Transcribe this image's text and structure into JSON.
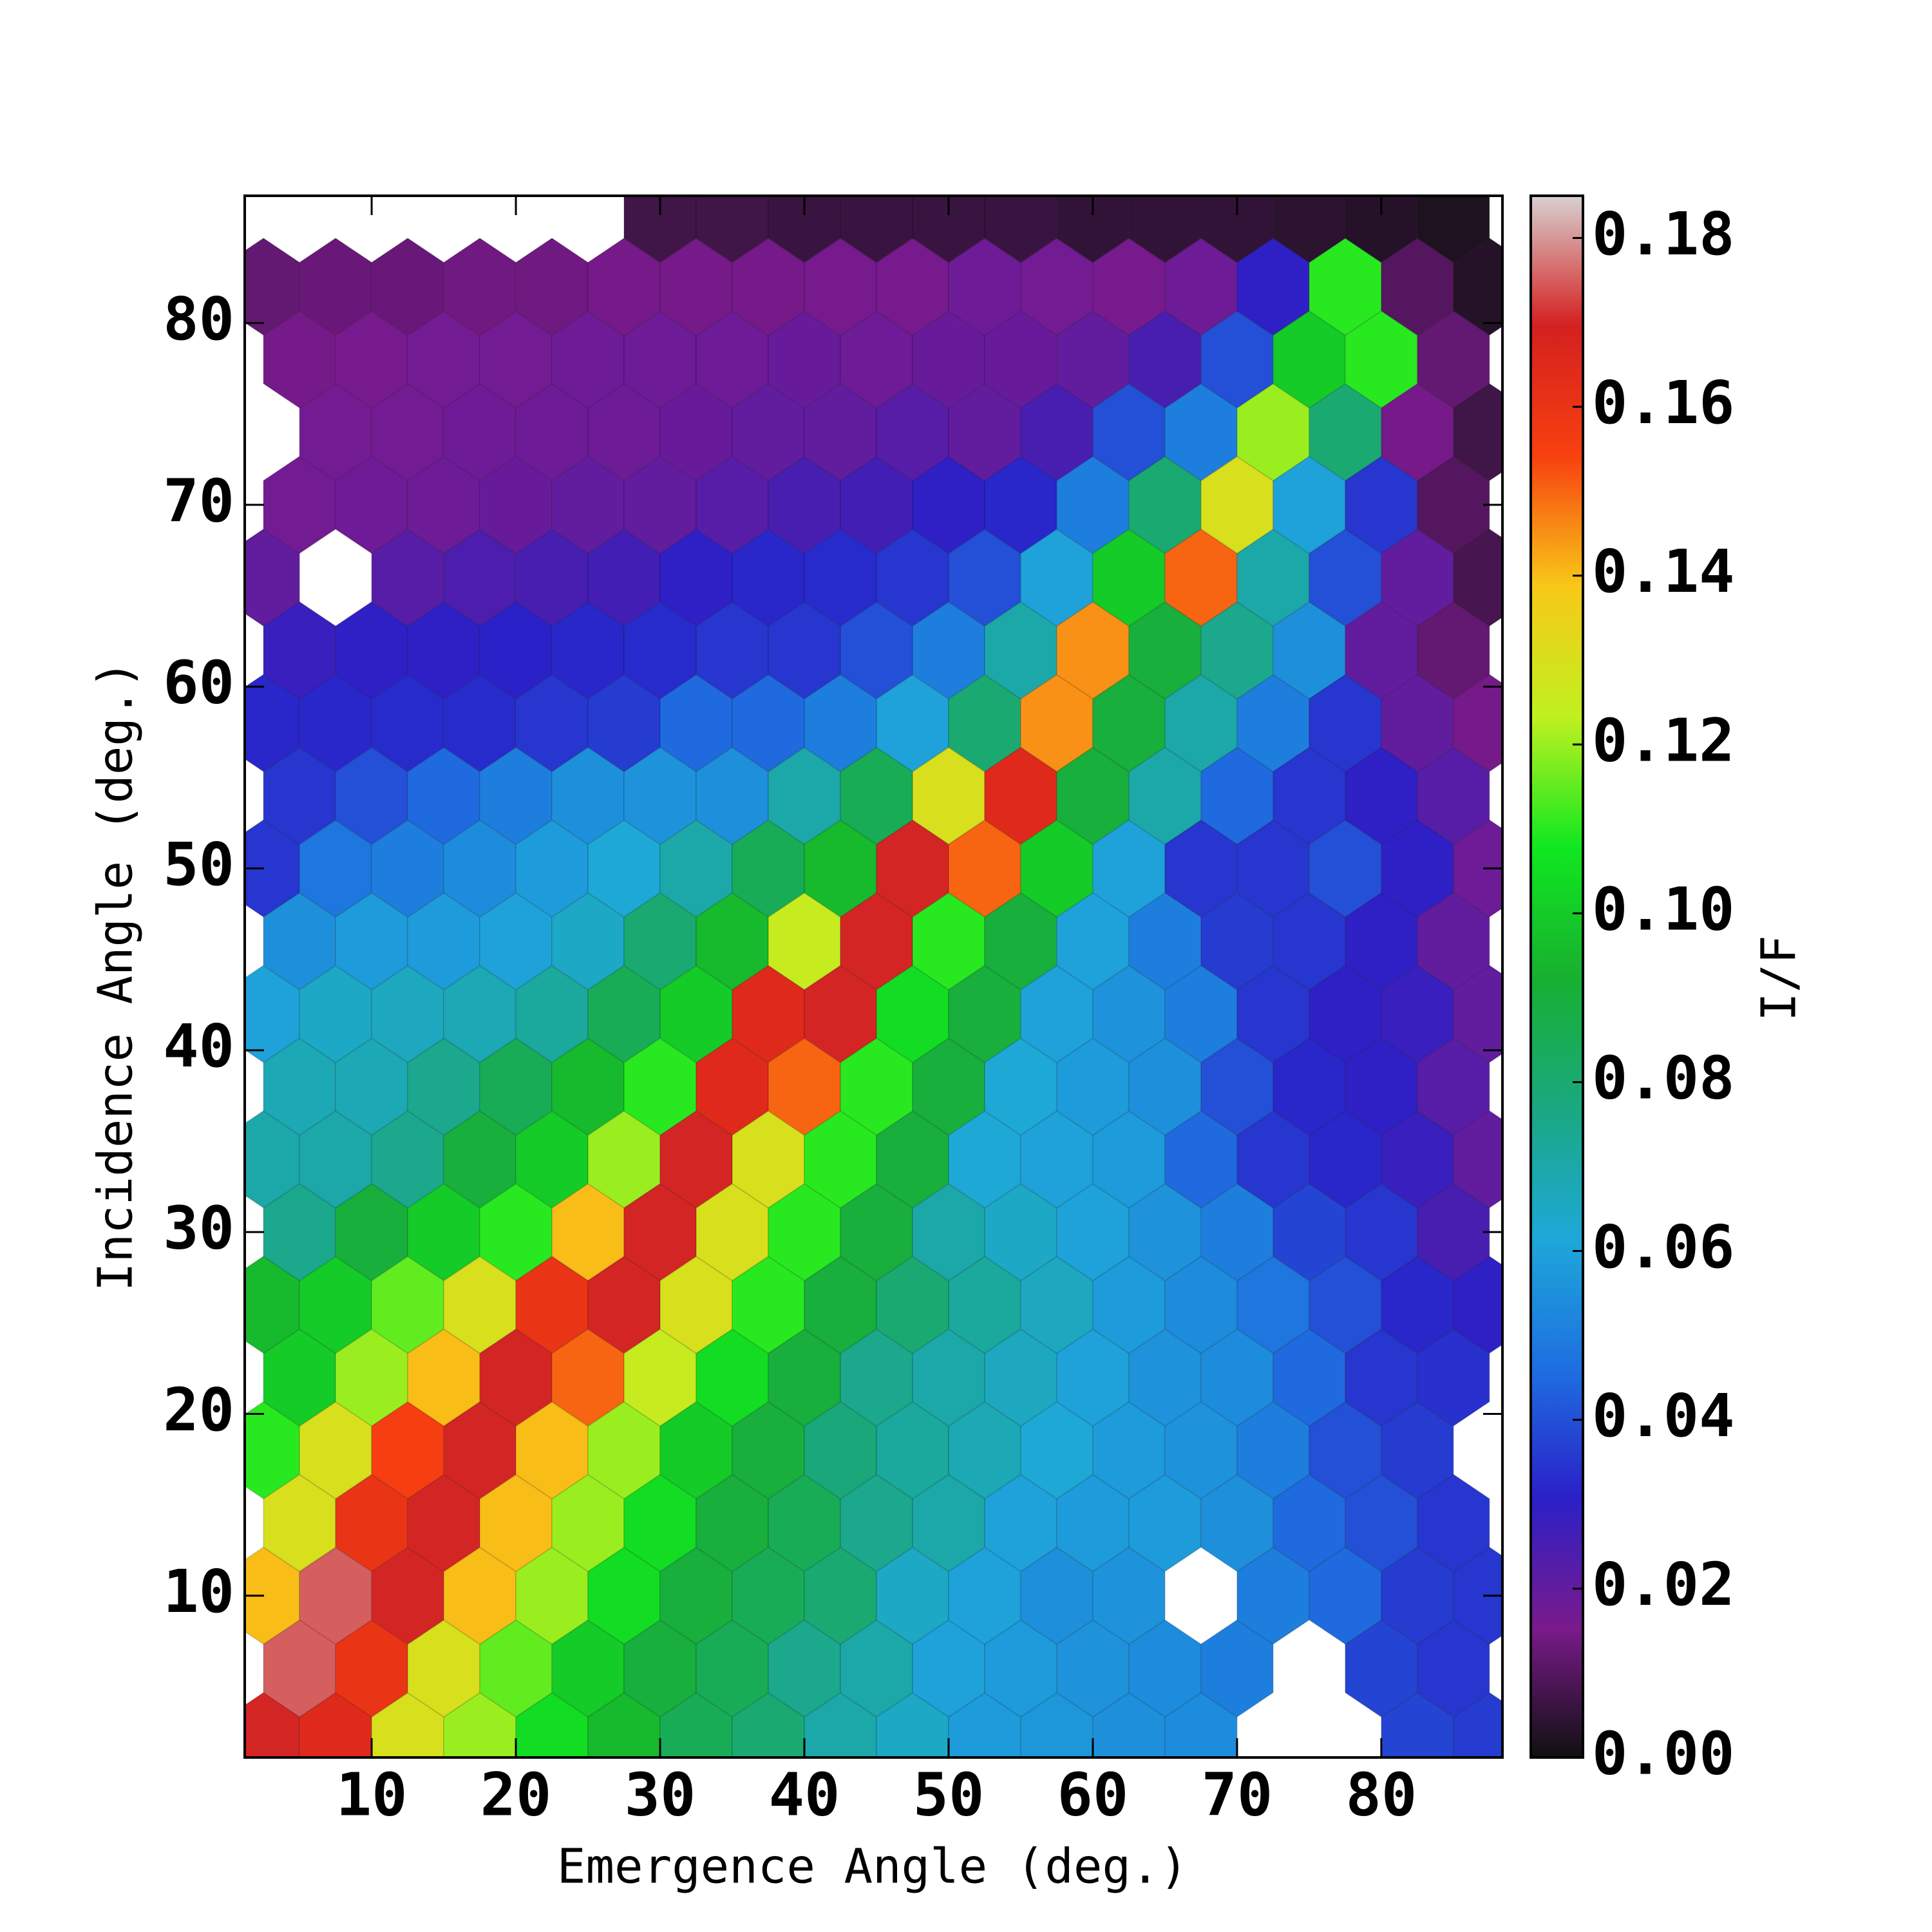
{
  "chart_data": {
    "type": "hexbin",
    "xlabel": "Emergence Angle (deg.)",
    "ylabel": "Incidence Angle (deg.)",
    "colorbar_label": "I/F",
    "xlim": [
      1.2,
      88.4
    ],
    "ylim": [
      1.1,
      87
    ],
    "xticks": [
      10,
      20,
      30,
      40,
      50,
      60,
      70,
      80
    ],
    "yticks": [
      10,
      20,
      30,
      40,
      50,
      60,
      70,
      80
    ],
    "clim": [
      0,
      0.185
    ],
    "cticks": [
      {
        "value": 0,
        "label": "0.00"
      },
      {
        "value": 0.02,
        "label": "0.02"
      },
      {
        "value": 0.04,
        "label": "0.04"
      },
      {
        "value": 0.06,
        "label": "0.06"
      },
      {
        "value": 0.08,
        "label": "0.08"
      },
      {
        "value": 0.1,
        "label": "0.10"
      },
      {
        "value": 0.12,
        "label": "0.12"
      },
      {
        "value": 0.14,
        "label": "0.14"
      },
      {
        "value": 0.16,
        "label": "0.16"
      },
      {
        "value": 0.18,
        "label": "0.18"
      }
    ],
    "colormap": [
      "#101010",
      "#7a1a8c",
      "#2a20c8",
      "#1e70e0",
      "#1ea8d8",
      "#1aa880",
      "#18b030",
      "#10e820",
      "#c0f020",
      "#f8c818",
      "#f84010",
      "#d42020",
      "#d8d0d0"
    ],
    "rows": [
      {
        "y": 2,
        "x": [
          2.5,
          7.5,
          12.5,
          17.5,
          22.5,
          27.5,
          32.5,
          37.5,
          42.5,
          47.5,
          52.5,
          57.5,
          62.5,
          67.5,
          72.5,
          77.5,
          82.5,
          87.5
        ],
        "values": [
          0.17,
          0.165,
          0.13,
          0.12,
          0.105,
          0.095,
          0.085,
          0.08,
          0.07,
          0.065,
          0.058,
          0.057,
          0.055,
          0.054,
          null,
          null,
          0.038,
          0.036
        ]
      },
      {
        "y": 6,
        "x": [
          5,
          10,
          15,
          20,
          25,
          30,
          35,
          40,
          45,
          50,
          55,
          60,
          65,
          70,
          75,
          80,
          85
        ],
        "values": [
          0.175,
          0.16,
          0.13,
          0.115,
          0.1,
          0.09,
          0.085,
          0.075,
          0.07,
          0.06,
          0.058,
          0.056,
          0.054,
          0.05,
          null,
          0.038,
          0.035
        ]
      },
      {
        "y": 10,
        "x": [
          2.5,
          7.5,
          12.5,
          17.5,
          22.5,
          27.5,
          32.5,
          37.5,
          42.5,
          47.5,
          52.5,
          57.5,
          62.5,
          67.5,
          72.5,
          77.5,
          82.5,
          87.5
        ],
        "values": [
          0.14,
          0.175,
          0.17,
          0.14,
          0.12,
          0.105,
          0.09,
          0.085,
          0.08,
          0.065,
          0.06,
          0.055,
          0.056,
          null,
          0.05,
          0.045,
          0.036,
          0.035
        ]
      },
      {
        "y": 14,
        "x": [
          5,
          10,
          15,
          20,
          25,
          30,
          35,
          40,
          45,
          50,
          55,
          60,
          65,
          70,
          75,
          80,
          85
        ],
        "values": [
          0.13,
          0.16,
          0.17,
          0.14,
          0.12,
          0.105,
          0.09,
          0.085,
          0.075,
          0.07,
          0.06,
          0.058,
          0.058,
          0.055,
          0.045,
          0.04,
          0.035
        ]
      },
      {
        "y": 18,
        "x": [
          2.5,
          7.5,
          12.5,
          17.5,
          22.5,
          27.5,
          32.5,
          37.5,
          42.5,
          47.5,
          52.5,
          57.5,
          62.5,
          67.5,
          72.5,
          77.5,
          82.5,
          87.5
        ],
        "values": [
          0.11,
          0.13,
          0.155,
          0.17,
          0.14,
          0.12,
          0.1,
          0.09,
          0.078,
          0.072,
          0.068,
          0.062,
          0.058,
          0.056,
          0.05,
          0.04,
          0.036,
          null
        ]
      },
      {
        "y": 22,
        "x": [
          5,
          10,
          15,
          20,
          25,
          30,
          35,
          40,
          45,
          50,
          55,
          60,
          65,
          70,
          75,
          80,
          85
        ],
        "values": [
          0.1,
          0.12,
          0.14,
          0.17,
          0.15,
          0.125,
          0.105,
          0.09,
          0.075,
          0.07,
          0.066,
          0.06,
          0.056,
          0.054,
          0.045,
          0.035,
          0.034
        ]
      },
      {
        "y": 26,
        "x": [
          2.5,
          7.5,
          12.5,
          17.5,
          22.5,
          27.5,
          32.5,
          37.5,
          42.5,
          47.5,
          52.5,
          57.5,
          62.5,
          67.5,
          72.5,
          77.5,
          82.5,
          87.5
        ],
        "values": [
          0.095,
          0.1,
          0.115,
          0.13,
          0.16,
          0.17,
          0.13,
          0.11,
          0.09,
          0.08,
          0.072,
          0.066,
          0.058,
          0.054,
          0.048,
          0.04,
          0.032,
          0.03
        ]
      },
      {
        "y": 30,
        "x": [
          5,
          10,
          15,
          20,
          25,
          30,
          35,
          40,
          45,
          50,
          55,
          60,
          65,
          70,
          75,
          80,
          85
        ],
        "values": [
          0.075,
          0.09,
          0.1,
          0.11,
          0.14,
          0.17,
          0.13,
          0.11,
          0.09,
          0.07,
          0.065,
          0.06,
          0.056,
          0.05,
          0.038,
          0.035,
          0.025
        ]
      },
      {
        "y": 34,
        "x": [
          2.5,
          7.5,
          12.5,
          17.5,
          22.5,
          27.5,
          32.5,
          37.5,
          42.5,
          47.5,
          52.5,
          57.5,
          62.5,
          67.5,
          72.5,
          77.5,
          82.5,
          87.5
        ],
        "values": [
          0.07,
          0.07,
          0.075,
          0.09,
          0.1,
          0.12,
          0.17,
          0.13,
          0.11,
          0.09,
          0.062,
          0.06,
          0.058,
          0.045,
          0.035,
          0.032,
          0.028,
          0.02
        ]
      },
      {
        "y": 38,
        "x": [
          5,
          10,
          15,
          20,
          25,
          30,
          35,
          40,
          45,
          50,
          55,
          60,
          65,
          70,
          75,
          80,
          85
        ],
        "values": [
          0.068,
          0.068,
          0.075,
          0.085,
          0.095,
          0.11,
          0.165,
          0.15,
          0.11,
          0.09,
          0.062,
          0.058,
          0.055,
          0.04,
          0.032,
          0.03,
          0.022
        ]
      },
      {
        "y": 42,
        "x": [
          2.5,
          7.5,
          12.5,
          17.5,
          22.5,
          27.5,
          32.5,
          37.5,
          42.5,
          47.5,
          52.5,
          57.5,
          62.5,
          67.5,
          72.5,
          77.5,
          82.5,
          87.5
        ],
        "values": [
          0.06,
          0.065,
          0.066,
          0.068,
          0.072,
          0.085,
          0.1,
          0.165,
          0.17,
          0.105,
          0.09,
          0.06,
          0.056,
          0.05,
          0.035,
          0.03,
          0.028,
          0.02
        ]
      },
      {
        "y": 46,
        "x": [
          5,
          10,
          15,
          20,
          25,
          30,
          35,
          40,
          45,
          50,
          55,
          60,
          65,
          70,
          75,
          80,
          85
        ],
        "values": [
          0.055,
          0.058,
          0.058,
          0.06,
          0.065,
          0.08,
          0.095,
          0.125,
          0.17,
          0.11,
          0.09,
          0.06,
          0.05,
          0.036,
          0.035,
          0.03,
          0.02
        ]
      },
      {
        "y": 50,
        "x": [
          2.5,
          7.5,
          12.5,
          17.5,
          22.5,
          27.5,
          32.5,
          37.5,
          42.5,
          47.5,
          52.5,
          57.5,
          62.5,
          67.5,
          72.5,
          77.5,
          82.5,
          87.5
        ],
        "values": [
          0.035,
          0.048,
          0.05,
          0.054,
          0.058,
          0.062,
          0.07,
          0.085,
          0.095,
          0.17,
          0.15,
          0.1,
          0.06,
          0.035,
          0.035,
          0.04,
          0.03,
          0.018
        ]
      },
      {
        "y": 54,
        "x": [
          5,
          10,
          15,
          20,
          25,
          30,
          35,
          40,
          45,
          50,
          55,
          60,
          65,
          70,
          75,
          80,
          85
        ],
        "values": [
          0.035,
          0.04,
          0.045,
          0.05,
          0.055,
          0.056,
          0.055,
          0.07,
          0.085,
          0.13,
          0.165,
          0.09,
          0.07,
          0.045,
          0.035,
          0.03,
          0.022
        ]
      },
      {
        "y": 58,
        "x": [
          2.5,
          7.5,
          12.5,
          17.5,
          22.5,
          27.5,
          32.5,
          37.5,
          42.5,
          47.5,
          52.5,
          57.5,
          62.5,
          67.5,
          72.5,
          77.5,
          82.5,
          87.5
        ],
        "values": [
          0.032,
          0.032,
          0.033,
          0.033,
          0.035,
          0.036,
          0.045,
          0.045,
          0.05,
          0.06,
          0.08,
          0.145,
          0.09,
          0.07,
          0.05,
          0.035,
          0.02,
          0.015
        ]
      },
      {
        "y": 62,
        "x": [
          5,
          10,
          15,
          20,
          25,
          30,
          35,
          40,
          45,
          50,
          55,
          60,
          65,
          70,
          75,
          80,
          85
        ],
        "values": [
          0.028,
          0.03,
          0.03,
          0.031,
          0.032,
          0.033,
          0.035,
          0.035,
          0.04,
          0.05,
          0.07,
          0.145,
          0.09,
          0.075,
          0.055,
          0.02,
          0.012
        ]
      },
      {
        "y": 66,
        "x": [
          2.5,
          7.5,
          12.5,
          17.5,
          22.5,
          27.5,
          32.5,
          37.5,
          42.5,
          47.5,
          52.5,
          57.5,
          62.5,
          67.5,
          72.5,
          77.5,
          82.5,
          87.5
        ],
        "values": [
          0.02,
          null,
          0.022,
          0.024,
          0.025,
          0.026,
          0.03,
          0.032,
          0.033,
          0.035,
          0.04,
          0.06,
          0.1,
          0.15,
          0.07,
          0.04,
          0.02,
          0.008
        ]
      },
      {
        "y": 70,
        "x": [
          5,
          10,
          15,
          20,
          25,
          30,
          35,
          40,
          45,
          50,
          55,
          60,
          65,
          70,
          75,
          80,
          85
        ],
        "values": [
          0.017,
          0.018,
          0.018,
          0.019,
          0.02,
          0.02,
          0.022,
          0.025,
          0.026,
          0.03,
          0.032,
          0.05,
          0.08,
          0.13,
          0.06,
          0.035,
          0.01
        ]
      },
      {
        "y": 74,
        "x": [
          2.5,
          7.5,
          12.5,
          17.5,
          22.5,
          27.5,
          32.5,
          37.5,
          42.5,
          47.5,
          52.5,
          57.5,
          62.5,
          67.5,
          72.5,
          77.5,
          82.5,
          87.5
        ],
        "values": [
          null,
          0.017,
          0.017,
          0.018,
          0.018,
          0.018,
          0.019,
          0.02,
          0.02,
          0.022,
          0.02,
          0.025,
          0.04,
          0.05,
          0.12,
          0.08,
          0.015,
          0.007
        ]
      },
      {
        "y": 78,
        "x": [
          5,
          10,
          15,
          20,
          25,
          30,
          35,
          40,
          45,
          50,
          55,
          60,
          65,
          70,
          75,
          80,
          85
        ],
        "values": [
          0.015,
          0.016,
          0.017,
          0.017,
          0.018,
          0.018,
          0.018,
          0.019,
          0.018,
          0.019,
          0.019,
          0.02,
          0.025,
          0.04,
          0.1,
          0.11,
          0.012
        ]
      },
      {
        "y": 82,
        "x": [
          2.5,
          7.5,
          12.5,
          17.5,
          22.5,
          27.5,
          32.5,
          37.5,
          42.5,
          47.5,
          52.5,
          57.5,
          62.5,
          67.5,
          72.5,
          77.5,
          82.5,
          87.5
        ],
        "values": [
          0.012,
          0.013,
          0.013,
          0.014,
          0.014,
          0.015,
          0.015,
          0.015,
          0.016,
          0.016,
          0.018,
          0.017,
          0.016,
          0.018,
          0.03,
          0.11,
          0.01,
          0.003
        ]
      },
      {
        "y": 86,
        "x": [
          5,
          10,
          15,
          20,
          25,
          30,
          35,
          40,
          45,
          50,
          55,
          60,
          65,
          70,
          75,
          80,
          85
        ],
        "values": [
          null,
          null,
          null,
          null,
          null,
          0.007,
          0.007,
          0.006,
          0.006,
          0.006,
          0.006,
          0.005,
          0.005,
          0.005,
          0.004,
          0.003,
          0.002
        ]
      }
    ]
  }
}
